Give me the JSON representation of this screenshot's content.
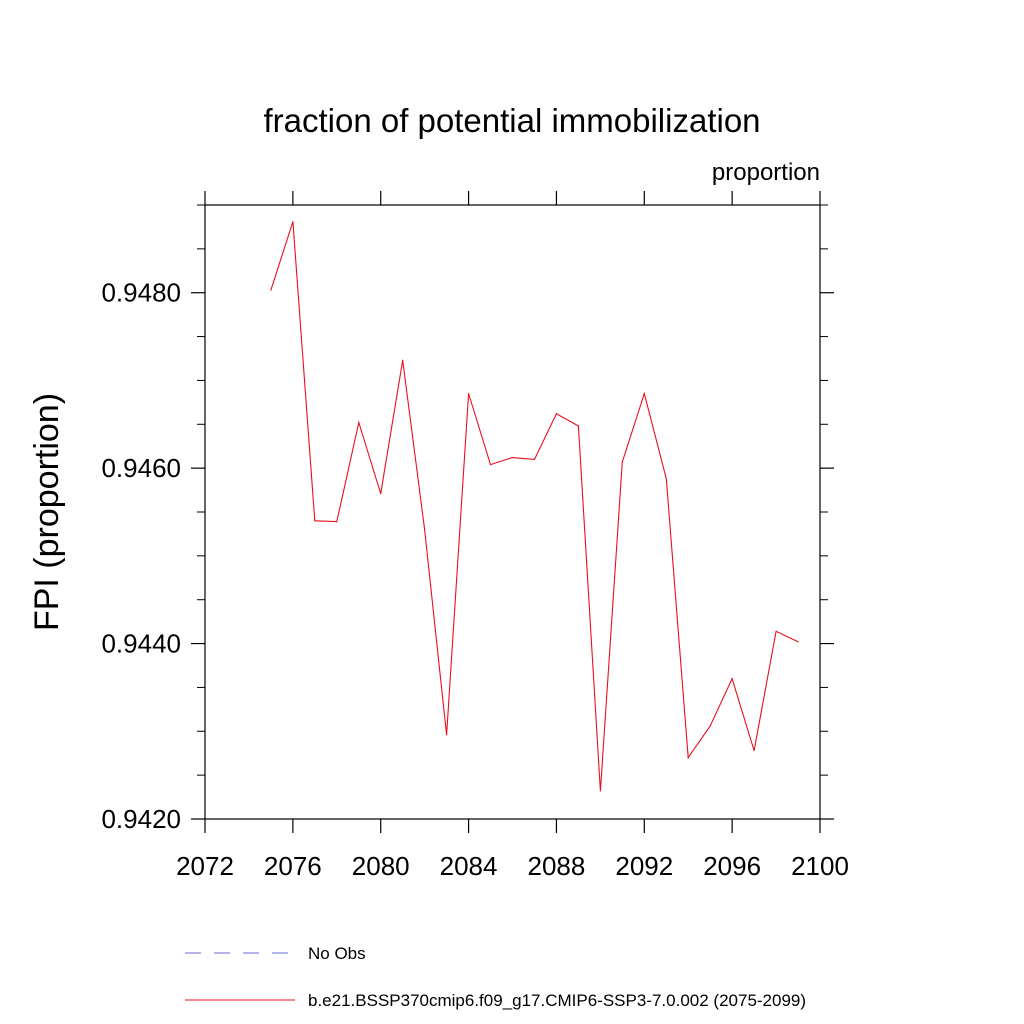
{
  "chart_data": {
    "type": "line",
    "title": "fraction of potential immobilization",
    "units_label": "proportion",
    "ylabel": "FPI  (proportion)",
    "xlabel": "",
    "xlim": [
      2072,
      2100
    ],
    "ylim": [
      0.942,
      0.949
    ],
    "xticks": [
      2072,
      2076,
      2080,
      2084,
      2088,
      2092,
      2096,
      2100
    ],
    "xtick_labels": [
      "2072",
      "2076",
      "2080",
      "2084",
      "2088",
      "2092",
      "2096",
      "2100"
    ],
    "yticks": [
      0.942,
      0.944,
      0.946,
      0.948
    ],
    "ytick_labels": [
      "0.9420",
      "0.9440",
      "0.9460",
      "0.9480"
    ],
    "grid": false,
    "legend_position": "bottom",
    "series": [
      {
        "name": "b.e21.BSSP370cmip6.f09_g17.CMIP6-SSP3-7.0.002 (2075-2099)",
        "color": "#e8101c",
        "style": "solid",
        "x": [
          2075,
          2076,
          2077,
          2078,
          2079,
          2080,
          2081,
          2082,
          2083,
          2084,
          2085,
          2086,
          2087,
          2088,
          2089,
          2090,
          2091,
          2092,
          2093,
          2094,
          2095,
          2096,
          2097,
          2098,
          2099
        ],
        "y": [
          0.94803,
          0.94881,
          0.9454,
          0.94539,
          0.94652,
          0.94571,
          0.94723,
          0.9453,
          0.94296,
          0.94685,
          0.94604,
          0.94612,
          0.9461,
          0.94662,
          0.94648,
          0.94232,
          0.94607,
          0.94685,
          0.94588,
          0.9427,
          0.94306,
          0.9436,
          0.94278,
          0.94414,
          0.94402
        ]
      }
    ],
    "legend": [
      {
        "label": "No Obs",
        "color": "#6a6ad6",
        "style": "dashed"
      },
      {
        "label": "b.e21.BSSP370cmip6.f09_g17.CMIP6-SSP3-7.0.002 (2075-2099)",
        "color": "#e8101c",
        "style": "solid"
      }
    ]
  }
}
